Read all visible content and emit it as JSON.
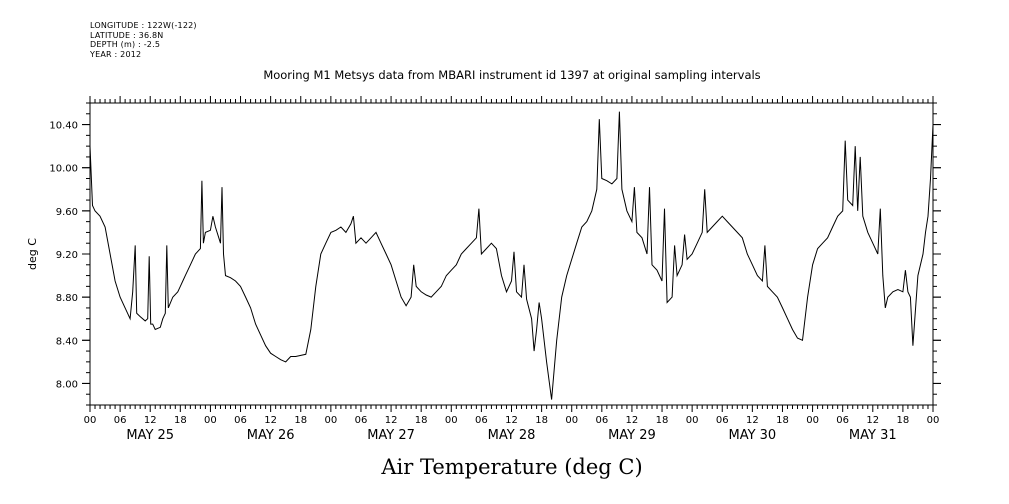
{
  "meta": {
    "longitude": "LONGITUDE : 122W(-122)",
    "latitude": "LATITUDE : 36.8N",
    "depth": "DEPTH (m) : -2.5",
    "year": "YEAR : 2012"
  },
  "chart_data": {
    "type": "line",
    "title": "Mooring M1 Metsys data from MBARI instrument id 1397 at original sampling intervals",
    "xlabel": "Air Temperature (deg C)",
    "ylabel": "deg C",
    "ylim": [
      7.8,
      10.6
    ],
    "xlim": [
      0,
      168
    ],
    "yticks": [
      "8.00",
      "8.40",
      "8.80",
      "9.20",
      "9.60",
      "10.00",
      "10.40"
    ],
    "hour_tick_labels": [
      "00",
      "06",
      "12",
      "18"
    ],
    "day_labels": [
      "MAY 25",
      "MAY 26",
      "MAY 27",
      "MAY 28",
      "MAY 29",
      "MAY 30",
      "MAY 31"
    ],
    "series": [
      {
        "x_unit": "hours since 00 MAY 25",
        "points": [
          [
            0,
            10.2
          ],
          [
            0.5,
            9.65
          ],
          [
            1,
            9.6
          ],
          [
            2,
            9.55
          ],
          [
            3,
            9.45
          ],
          [
            4,
            9.2
          ],
          [
            5,
            8.95
          ],
          [
            6,
            8.8
          ],
          [
            7,
            8.7
          ],
          [
            7.5,
            8.65
          ],
          [
            8,
            8.6
          ],
          [
            8.5,
            8.85
          ],
          [
            9,
            9.28
          ],
          [
            9.3,
            8.65
          ],
          [
            10,
            8.62
          ],
          [
            11,
            8.58
          ],
          [
            11.5,
            8.6
          ],
          [
            11.8,
            9.18
          ],
          [
            12.1,
            8.55
          ],
          [
            12.5,
            8.55
          ],
          [
            13,
            8.5
          ],
          [
            14,
            8.52
          ],
          [
            14.5,
            8.6
          ],
          [
            15,
            8.65
          ],
          [
            15.3,
            9.28
          ],
          [
            15.6,
            8.7
          ],
          [
            16.5,
            8.8
          ],
          [
            17.5,
            8.85
          ],
          [
            18,
            8.9
          ],
          [
            18.5,
            8.95
          ],
          [
            19,
            9.0
          ],
          [
            20,
            9.1
          ],
          [
            21,
            9.2
          ],
          [
            22,
            9.25
          ],
          [
            22.3,
            9.88
          ],
          [
            22.6,
            9.3
          ],
          [
            23,
            9.4
          ],
          [
            24,
            9.42
          ],
          [
            24.5,
            9.55
          ],
          [
            25,
            9.45
          ],
          [
            26,
            9.3
          ],
          [
            26.3,
            9.82
          ],
          [
            26.6,
            9.2
          ],
          [
            27,
            9.0
          ],
          [
            28,
            8.98
          ],
          [
            29,
            8.95
          ],
          [
            30,
            8.9
          ],
          [
            31,
            8.8
          ],
          [
            32,
            8.7
          ],
          [
            33,
            8.55
          ],
          [
            34,
            8.45
          ],
          [
            35,
            8.35
          ],
          [
            36,
            8.28
          ],
          [
            37,
            8.25
          ],
          [
            38,
            8.22
          ],
          [
            39,
            8.2
          ],
          [
            40,
            8.25
          ],
          [
            41,
            8.25
          ],
          [
            42,
            8.26
          ],
          [
            43,
            8.27
          ],
          [
            44,
            8.5
          ],
          [
            45,
            8.9
          ],
          [
            46,
            9.2
          ],
          [
            47,
            9.3
          ],
          [
            48,
            9.4
          ],
          [
            49,
            9.42
          ],
          [
            50,
            9.45
          ],
          [
            51,
            9.4
          ],
          [
            52,
            9.48
          ],
          [
            52.5,
            9.55
          ],
          [
            53,
            9.3
          ],
          [
            54,
            9.35
          ],
          [
            55,
            9.3
          ],
          [
            56,
            9.35
          ],
          [
            57,
            9.4
          ],
          [
            58,
            9.3
          ],
          [
            59,
            9.2
          ],
          [
            60,
            9.1
          ],
          [
            61,
            8.95
          ],
          [
            62,
            8.8
          ],
          [
            63,
            8.72
          ],
          [
            64,
            8.8
          ],
          [
            64.5,
            9.1
          ],
          [
            65,
            8.9
          ],
          [
            66,
            8.85
          ],
          [
            67,
            8.82
          ],
          [
            68,
            8.8
          ],
          [
            69,
            8.85
          ],
          [
            70,
            8.9
          ],
          [
            71,
            9.0
          ],
          [
            72,
            9.05
          ],
          [
            73,
            9.1
          ],
          [
            74,
            9.2
          ],
          [
            75,
            9.25
          ],
          [
            76,
            9.3
          ],
          [
            77,
            9.35
          ],
          [
            77.5,
            9.62
          ],
          [
            78,
            9.2
          ],
          [
            79,
            9.25
          ],
          [
            80,
            9.3
          ],
          [
            81,
            9.25
          ],
          [
            82,
            9.0
          ],
          [
            83,
            8.85
          ],
          [
            84,
            8.95
          ],
          [
            84.5,
            9.22
          ],
          [
            85,
            8.85
          ],
          [
            86,
            8.8
          ],
          [
            86.5,
            9.1
          ],
          [
            87,
            8.78
          ],
          [
            88,
            8.6
          ],
          [
            88.5,
            8.3
          ],
          [
            89,
            8.5
          ],
          [
            89.5,
            8.75
          ],
          [
            90,
            8.6
          ],
          [
            91,
            8.2
          ],
          [
            92,
            7.85
          ],
          [
            93,
            8.4
          ],
          [
            94,
            8.8
          ],
          [
            95,
            9.0
          ],
          [
            96,
            9.15
          ],
          [
            97,
            9.3
          ],
          [
            98,
            9.45
          ],
          [
            99,
            9.5
          ],
          [
            100,
            9.6
          ],
          [
            101,
            9.8
          ],
          [
            101.5,
            10.45
          ],
          [
            102,
            9.9
          ],
          [
            103,
            9.88
          ],
          [
            104,
            9.85
          ],
          [
            105,
            9.9
          ],
          [
            105.5,
            10.52
          ],
          [
            106,
            9.8
          ],
          [
            107,
            9.6
          ],
          [
            108,
            9.5
          ],
          [
            108.5,
            9.82
          ],
          [
            109,
            9.4
          ],
          [
            110,
            9.35
          ],
          [
            111,
            9.2
          ],
          [
            111.5,
            9.82
          ],
          [
            112,
            9.1
          ],
          [
            113,
            9.05
          ],
          [
            114,
            8.95
          ],
          [
            114.5,
            9.62
          ],
          [
            115,
            8.75
          ],
          [
            116,
            8.8
          ],
          [
            116.5,
            9.28
          ],
          [
            117,
            9.0
          ],
          [
            118,
            9.1
          ],
          [
            118.5,
            9.38
          ],
          [
            119,
            9.15
          ],
          [
            120,
            9.2
          ],
          [
            121,
            9.3
          ],
          [
            122,
            9.4
          ],
          [
            122.5,
            9.8
          ],
          [
            123,
            9.4
          ],
          [
            124,
            9.45
          ],
          [
            125,
            9.5
          ],
          [
            126,
            9.55
          ],
          [
            127,
            9.5
          ],
          [
            128,
            9.45
          ],
          [
            129,
            9.4
          ],
          [
            130,
            9.35
          ],
          [
            131,
            9.2
          ],
          [
            132,
            9.1
          ],
          [
            133,
            9.0
          ],
          [
            134,
            8.95
          ],
          [
            134.5,
            9.28
          ],
          [
            135,
            8.9
          ],
          [
            136,
            8.85
          ],
          [
            137,
            8.8
          ],
          [
            138,
            8.7
          ],
          [
            139,
            8.6
          ],
          [
            140,
            8.5
          ],
          [
            141,
            8.42
          ],
          [
            142,
            8.4
          ],
          [
            143,
            8.8
          ],
          [
            144,
            9.1
          ],
          [
            145,
            9.25
          ],
          [
            146,
            9.3
          ],
          [
            147,
            9.35
          ],
          [
            148,
            9.45
          ],
          [
            149,
            9.55
          ],
          [
            150,
            9.6
          ],
          [
            150.5,
            10.25
          ],
          [
            151,
            9.7
          ],
          [
            152,
            9.65
          ],
          [
            152.5,
            10.2
          ],
          [
            153,
            9.6
          ],
          [
            153.5,
            10.1
          ],
          [
            154,
            9.55
          ],
          [
            155,
            9.4
          ],
          [
            156,
            9.3
          ],
          [
            157,
            9.2
          ],
          [
            157.5,
            9.62
          ],
          [
            158,
            9.0
          ],
          [
            158.5,
            8.7
          ],
          [
            159,
            8.8
          ],
          [
            160,
            8.85
          ],
          [
            161,
            8.87
          ],
          [
            162,
            8.85
          ],
          [
            162.5,
            9.05
          ],
          [
            163,
            8.85
          ],
          [
            163.5,
            8.8
          ],
          [
            164,
            8.35
          ],
          [
            165,
            9.0
          ],
          [
            166,
            9.2
          ],
          [
            166.5,
            9.4
          ],
          [
            167,
            9.55
          ],
          [
            167.5,
            9.9
          ],
          [
            168,
            10.4
          ]
        ]
      }
    ]
  }
}
